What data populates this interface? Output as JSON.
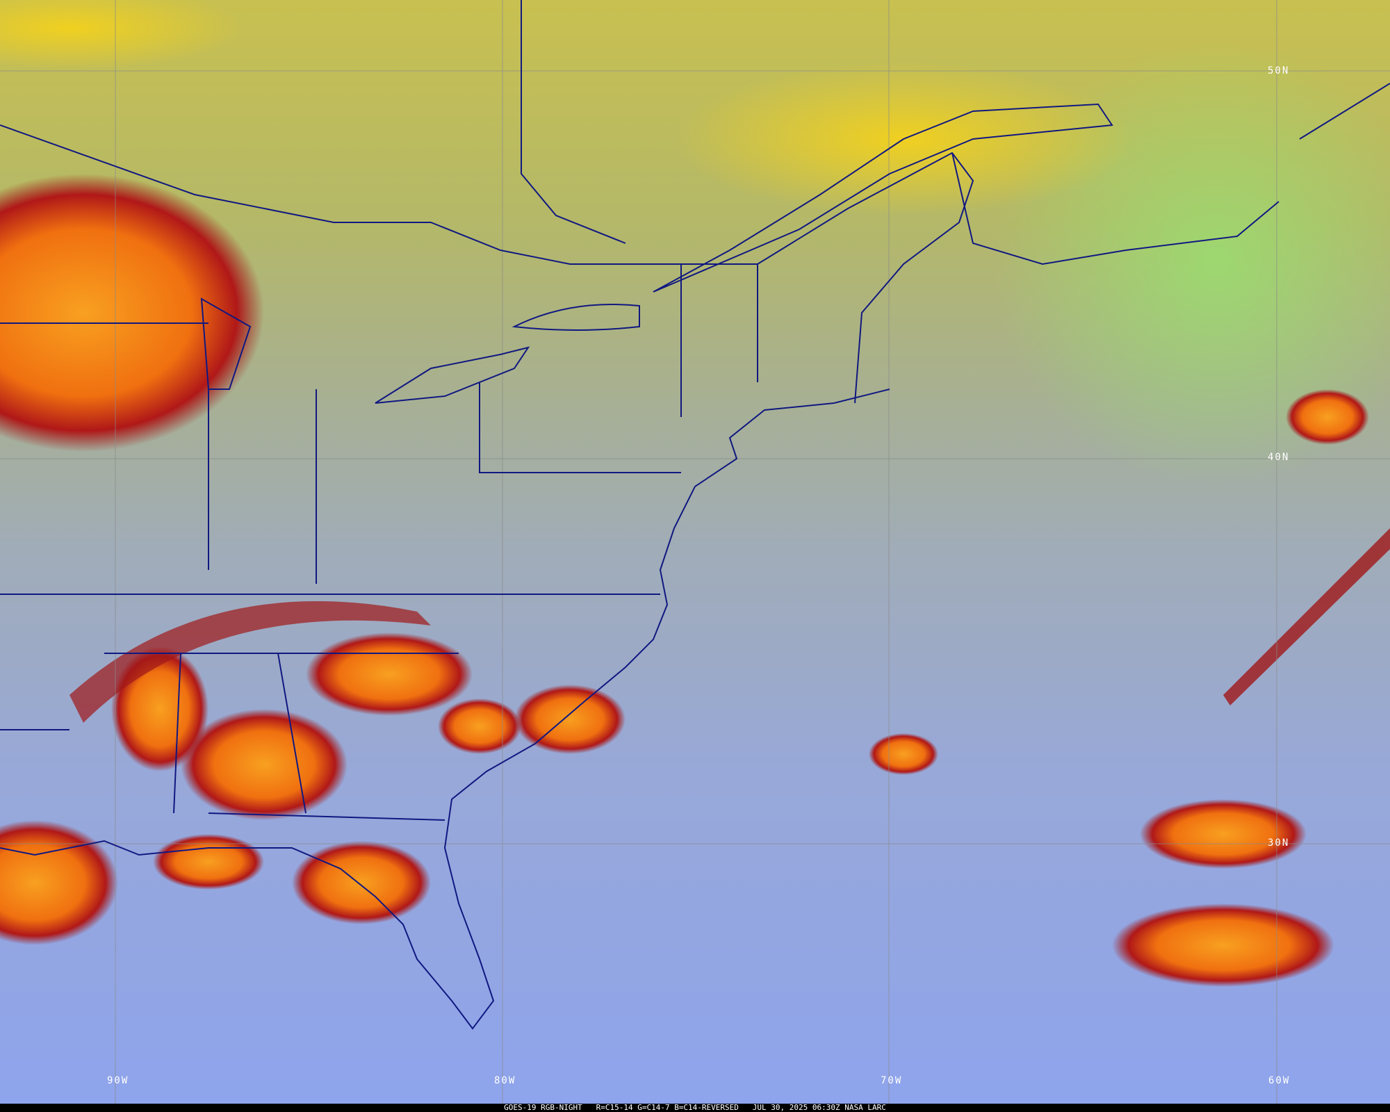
{
  "caption": "GOES-19 RGB-NIGHT   R=C15-14 G=C14-7 B=C14-REVERSED   JUL 30, 2025 06:30Z NASA LARC",
  "graticule": {
    "latitudes": [
      "50N",
      "40N",
      "30N"
    ],
    "longitudes": [
      "90W",
      "80W",
      "70W",
      "60W"
    ]
  },
  "colors": {
    "north_airmass": "#b8c060",
    "clear_ocean": "#8fa6e8",
    "deep_convection": "#f08a20",
    "cloud_edge": "#a01818",
    "borders": "#101880",
    "grid": "#8a8a8a"
  }
}
